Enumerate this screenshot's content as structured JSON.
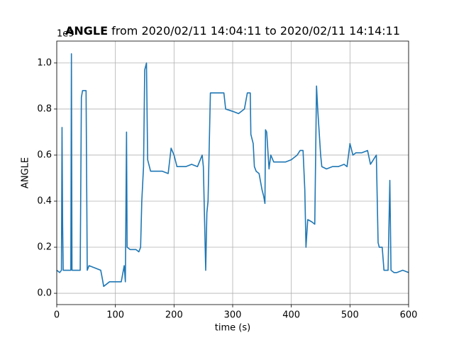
{
  "chart_data": {
    "type": "line",
    "title_bold": "ANGLE",
    "title_rest": " from 2020/02/11 14:04:11 to 2020/02/11 14:14:11",
    "xlabel": "time (s)",
    "ylabel": "ANGLE",
    "offset_label": "1e9",
    "xlim": [
      0,
      600
    ],
    "ylim": [
      -0.049,
      1.095
    ],
    "xticks": [
      0,
      100,
      200,
      300,
      400,
      500,
      600
    ],
    "yticks": [
      {
        "value": 0,
        "label": "0.0"
      },
      0.2,
      0.4,
      0.6,
      0.8,
      {
        "value": 1,
        "label": "1.0"
      }
    ],
    "grid": true,
    "x": [
      0,
      5,
      8,
      9,
      10,
      11,
      20,
      24,
      25,
      26,
      40,
      42,
      44,
      50,
      52,
      55,
      65,
      75,
      78,
      80,
      90,
      100,
      110,
      115,
      117,
      119,
      120,
      125,
      135,
      140,
      143,
      145,
      148,
      150,
      153,
      155,
      160,
      170,
      180,
      190,
      195,
      200,
      205,
      210,
      220,
      230,
      240,
      248,
      250,
      254,
      256,
      258,
      262,
      270,
      285,
      288,
      300,
      310,
      320,
      325,
      330,
      331,
      335,
      337,
      340,
      345,
      350,
      353,
      355,
      356,
      358,
      362,
      365,
      370,
      380,
      390,
      400,
      410,
      415,
      420,
      423,
      425,
      428,
      435,
      440,
      443,
      445,
      450,
      452,
      460,
      470,
      480,
      490,
      495,
      500,
      505,
      510,
      520,
      530,
      535,
      545,
      548,
      550,
      555,
      558,
      565,
      568,
      570,
      575,
      580,
      590,
      600
    ],
    "series": [
      {
        "name": "ANGLE",
        "color": "#1f77b4",
        "values": [
          0.1,
          0.09,
          0.1,
          0.72,
          0.3,
          0.1,
          0.1,
          0.1,
          1.04,
          0.1,
          0.1,
          0.85,
          0.88,
          0.88,
          0.1,
          0.12,
          0.11,
          0.1,
          0.06,
          0.03,
          0.05,
          0.05,
          0.05,
          0.12,
          0.05,
          0.7,
          0.2,
          0.19,
          0.19,
          0.18,
          0.2,
          0.4,
          0.55,
          0.97,
          1.0,
          0.58,
          0.53,
          0.53,
          0.53,
          0.52,
          0.63,
          0.6,
          0.55,
          0.55,
          0.55,
          0.56,
          0.55,
          0.6,
          0.55,
          0.1,
          0.35,
          0.4,
          0.87,
          0.87,
          0.87,
          0.8,
          0.79,
          0.78,
          0.8,
          0.87,
          0.87,
          0.69,
          0.65,
          0.55,
          0.53,
          0.52,
          0.45,
          0.42,
          0.39,
          0.71,
          0.7,
          0.54,
          0.6,
          0.57,
          0.57,
          0.57,
          0.58,
          0.6,
          0.62,
          0.62,
          0.45,
          0.2,
          0.32,
          0.31,
          0.3,
          0.9,
          0.8,
          0.6,
          0.55,
          0.54,
          0.55,
          0.55,
          0.56,
          0.55,
          0.65,
          0.6,
          0.61,
          0.61,
          0.62,
          0.56,
          0.6,
          0.22,
          0.2,
          0.2,
          0.1,
          0.1,
          0.49,
          0.1,
          0.09,
          0.09,
          0.1,
          0.09
        ]
      }
    ]
  }
}
